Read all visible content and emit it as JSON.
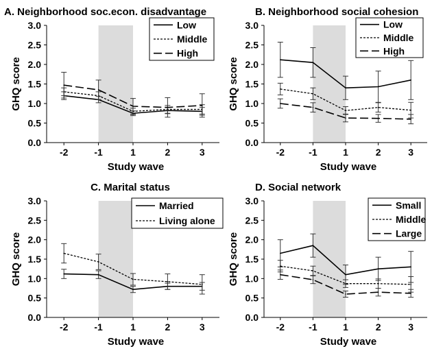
{
  "chart_data": [
    {
      "type": "line",
      "title": "A. Neighborhood soc.econ. disadvantage",
      "xlabel": "Study wave",
      "ylabel": "GHQ score",
      "categories": [
        "-2",
        "-1",
        "1",
        "2",
        "3"
      ],
      "yticks": [
        "0.0",
        "0.5",
        "1.0",
        "1.5",
        "2.0",
        "2.5",
        "3.0"
      ],
      "ylim": [
        0,
        3
      ],
      "shaded_band": [
        "-1",
        "1"
      ],
      "legend_position": "top-right",
      "series": [
        {
          "name": "Low",
          "style": "solid",
          "values": [
            1.2,
            1.1,
            0.75,
            0.82,
            0.8
          ],
          "error": [
            0.1,
            0.08,
            0.06,
            0.08,
            0.1
          ]
        },
        {
          "name": "Middle",
          "style": "dotted",
          "values": [
            1.3,
            1.2,
            0.8,
            0.85,
            0.85
          ],
          "error": [
            0.1,
            0.1,
            0.08,
            0.1,
            0.12
          ]
        },
        {
          "name": "High",
          "style": "dashed",
          "values": [
            1.47,
            1.35,
            0.93,
            0.9,
            0.95
          ],
          "error": [
            0.33,
            0.25,
            0.2,
            0.25,
            0.3
          ]
        }
      ]
    },
    {
      "type": "line",
      "title": "B. Neighborhood social cohesion",
      "xlabel": "Study wave",
      "ylabel": "GHQ score",
      "categories": [
        "-2",
        "-1",
        "1",
        "2",
        "3"
      ],
      "yticks": [
        "0.0",
        "0.5",
        "1.0",
        "1.5",
        "2.0",
        "2.5",
        "3.0"
      ],
      "ylim": [
        0,
        3
      ],
      "shaded_band": [
        "-1",
        "1"
      ],
      "legend_position": "top-right",
      "series": [
        {
          "name": "Low",
          "style": "solid",
          "values": [
            2.12,
            2.05,
            1.4,
            1.43,
            1.6
          ],
          "error": [
            0.45,
            0.38,
            0.3,
            0.4,
            0.5
          ]
        },
        {
          "name": "Middle",
          "style": "dotted",
          "values": [
            1.37,
            1.25,
            0.82,
            0.9,
            0.83
          ],
          "error": [
            0.15,
            0.15,
            0.1,
            0.12,
            0.2
          ]
        },
        {
          "name": "High",
          "style": "dashed",
          "values": [
            1.0,
            0.9,
            0.63,
            0.62,
            0.6
          ],
          "error": [
            0.12,
            0.12,
            0.1,
            0.1,
            0.12
          ]
        }
      ]
    },
    {
      "type": "line",
      "title": "C. Marital status",
      "xlabel": "Study wave",
      "ylabel": "GHQ score",
      "categories": [
        "-2",
        "-1",
        "1",
        "2",
        "3"
      ],
      "yticks": [
        "0.0",
        "0.5",
        "1.0",
        "1.5",
        "2.0",
        "2.5",
        "3.0"
      ],
      "ylim": [
        0,
        3
      ],
      "shaded_band": [
        "-1",
        "1"
      ],
      "legend_position": "top-right",
      "series": [
        {
          "name": "Married",
          "style": "solid",
          "values": [
            1.12,
            1.1,
            0.72,
            0.8,
            0.8
          ],
          "error": [
            0.12,
            0.1,
            0.08,
            0.08,
            0.1
          ]
        },
        {
          "name": "Living alone",
          "style": "dotted",
          "values": [
            1.65,
            1.43,
            0.98,
            0.92,
            0.85
          ],
          "error": [
            0.25,
            0.2,
            0.15,
            0.2,
            0.25
          ]
        }
      ]
    },
    {
      "type": "line",
      "title": "D. Social network",
      "xlabel": "Study wave",
      "ylabel": "GHQ score",
      "categories": [
        "-2",
        "-1",
        "1",
        "2",
        "3"
      ],
      "yticks": [
        "0.0",
        "0.5",
        "1.0",
        "1.5",
        "2.0",
        "2.5",
        "3.0"
      ],
      "ylim": [
        0,
        3
      ],
      "shaded_band": [
        "-1",
        "1"
      ],
      "legend_position": "top-right",
      "series": [
        {
          "name": "Small",
          "style": "solid",
          "values": [
            1.65,
            1.85,
            1.1,
            1.25,
            1.3
          ],
          "error": [
            0.35,
            0.3,
            0.25,
            0.3,
            0.4
          ]
        },
        {
          "name": "Middle",
          "style": "dotted",
          "values": [
            1.32,
            1.2,
            0.87,
            0.87,
            0.85
          ],
          "error": [
            0.15,
            0.12,
            0.1,
            0.12,
            0.2
          ]
        },
        {
          "name": "Large",
          "style": "dashed",
          "values": [
            1.1,
            0.97,
            0.6,
            0.65,
            0.62
          ],
          "error": [
            0.12,
            0.1,
            0.08,
            0.1,
            0.1
          ]
        }
      ]
    }
  ]
}
